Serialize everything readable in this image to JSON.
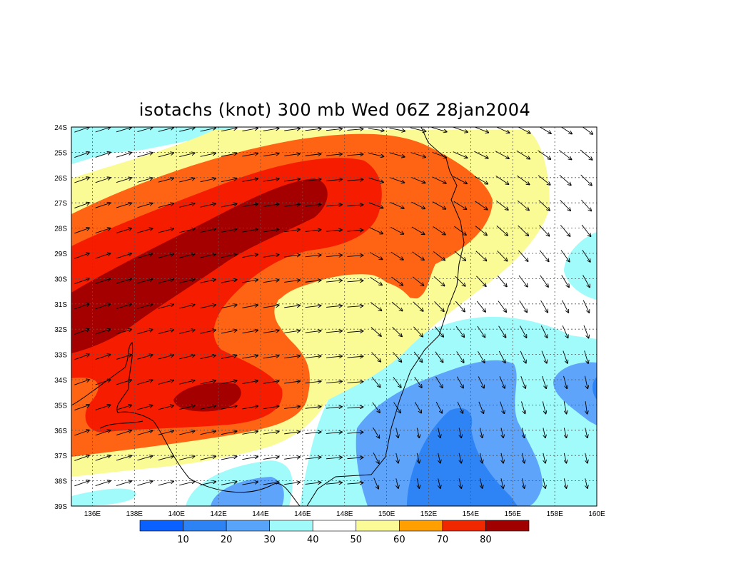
{
  "title": "isotachs (knot) 300 mb Wed 06Z 28jan2004",
  "map": {
    "lat_labels": [
      "24S",
      "25S",
      "26S",
      "27S",
      "28S",
      "29S",
      "30S",
      "31S",
      "32S",
      "33S",
      "34S",
      "35S",
      "36S",
      "37S",
      "38S",
      "39S"
    ],
    "lon_labels": [
      "136E",
      "138E",
      "140E",
      "142E",
      "144E",
      "146E",
      "148E",
      "150E",
      "152E",
      "154E",
      "156E",
      "158E",
      "160E"
    ],
    "lon_range": [
      135,
      160
    ],
    "lat_range": [
      -24,
      -39
    ],
    "grid": true
  },
  "colorbar": {
    "colors": [
      "#0a61ff",
      "#2d82f4",
      "#58a4fa",
      "#a0fafa",
      "#ffffff",
      "#fafa96",
      "#ffa000",
      "#f02800",
      "#a00000"
    ],
    "colors_full": [
      "#1e6eff",
      "#3c8cff",
      "#5fa5fa",
      "#a0ffff",
      "#ffffff",
      "#ffff96",
      "#ff6e1e",
      "#ff1e1e",
      "#a00a0a"
    ],
    "labels": [
      "10",
      "20",
      "30",
      "40",
      "50",
      "60",
      "70",
      "80"
    ]
  },
  "colors": {
    "c30": "#5ea4fb",
    "c20": "#2e84f4",
    "c40": "#a2fbfb",
    "c50": "#ffffff",
    "c60": "#fbfb96",
    "c70": "#ff6414",
    "c80": "#f51c00",
    "c90": "#a50000"
  }
}
